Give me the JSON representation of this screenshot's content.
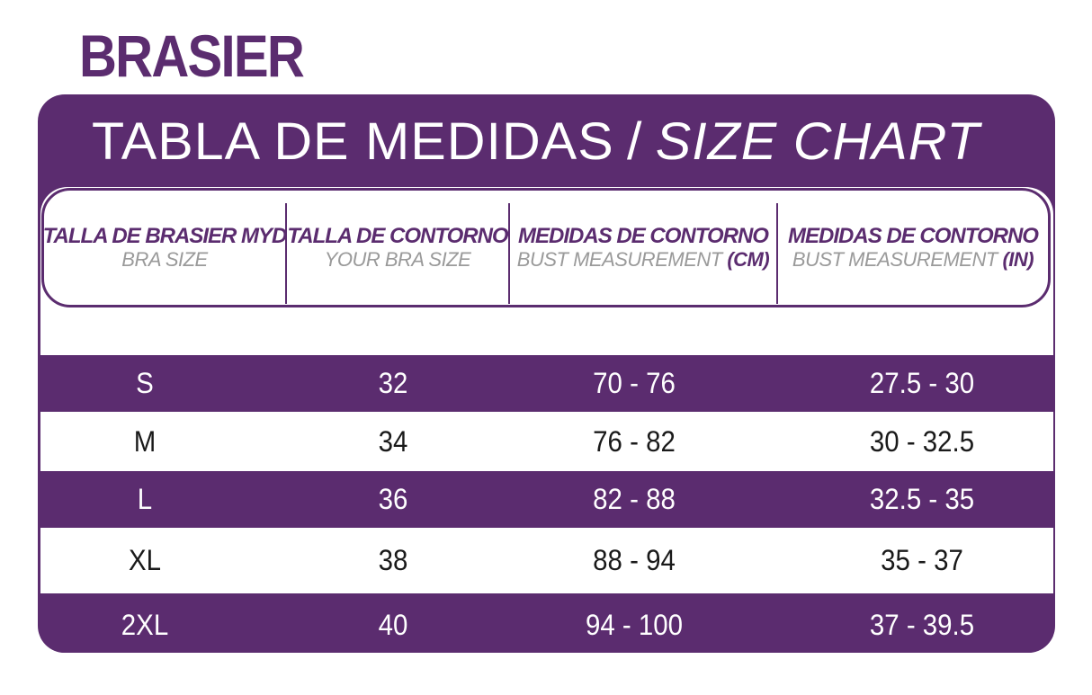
{
  "title": "BRASIER",
  "chart_heading": {
    "spanish": "TABLA DE MEDIDAS",
    "separator": "/",
    "english": "SIZE CHART"
  },
  "columns": [
    {
      "title": "TALLA DE BRASIER MYD",
      "subtitle": "BRA SIZE",
      "unit": ""
    },
    {
      "title": "TALLA DE CONTORNO",
      "subtitle": "YOUR BRA SIZE",
      "unit": ""
    },
    {
      "title": "MEDIDAS DE CONTORNO",
      "subtitle": "BUST MEASUREMENT",
      "unit": "(CM)"
    },
    {
      "title": "MEDIDAS DE CONTORNO",
      "subtitle": "BUST MEASUREMENT",
      "unit": "(IN)"
    }
  ],
  "rows": [
    {
      "size": "S",
      "band": "32",
      "cm": "70 - 76",
      "in": "27.5 - 30"
    },
    {
      "size": "M",
      "band": "34",
      "cm": "76 - 82",
      "in": "30 - 32.5"
    },
    {
      "size": "L",
      "band": "36",
      "cm": "82 - 88",
      "in": "32.5 - 35"
    },
    {
      "size": "XL",
      "band": "38",
      "cm": "88 - 94",
      "in": "35 - 37"
    },
    {
      "size": "2XL",
      "band": "40",
      "cm": "94 - 100",
      "in": "37 - 39.5"
    }
  ],
  "colors": {
    "brand_purple": "#5b2c6f",
    "subtitle_gray": "#9a9a9a",
    "row_text_dark": "#1a1a1a",
    "row_text_light": "#ffffff"
  }
}
